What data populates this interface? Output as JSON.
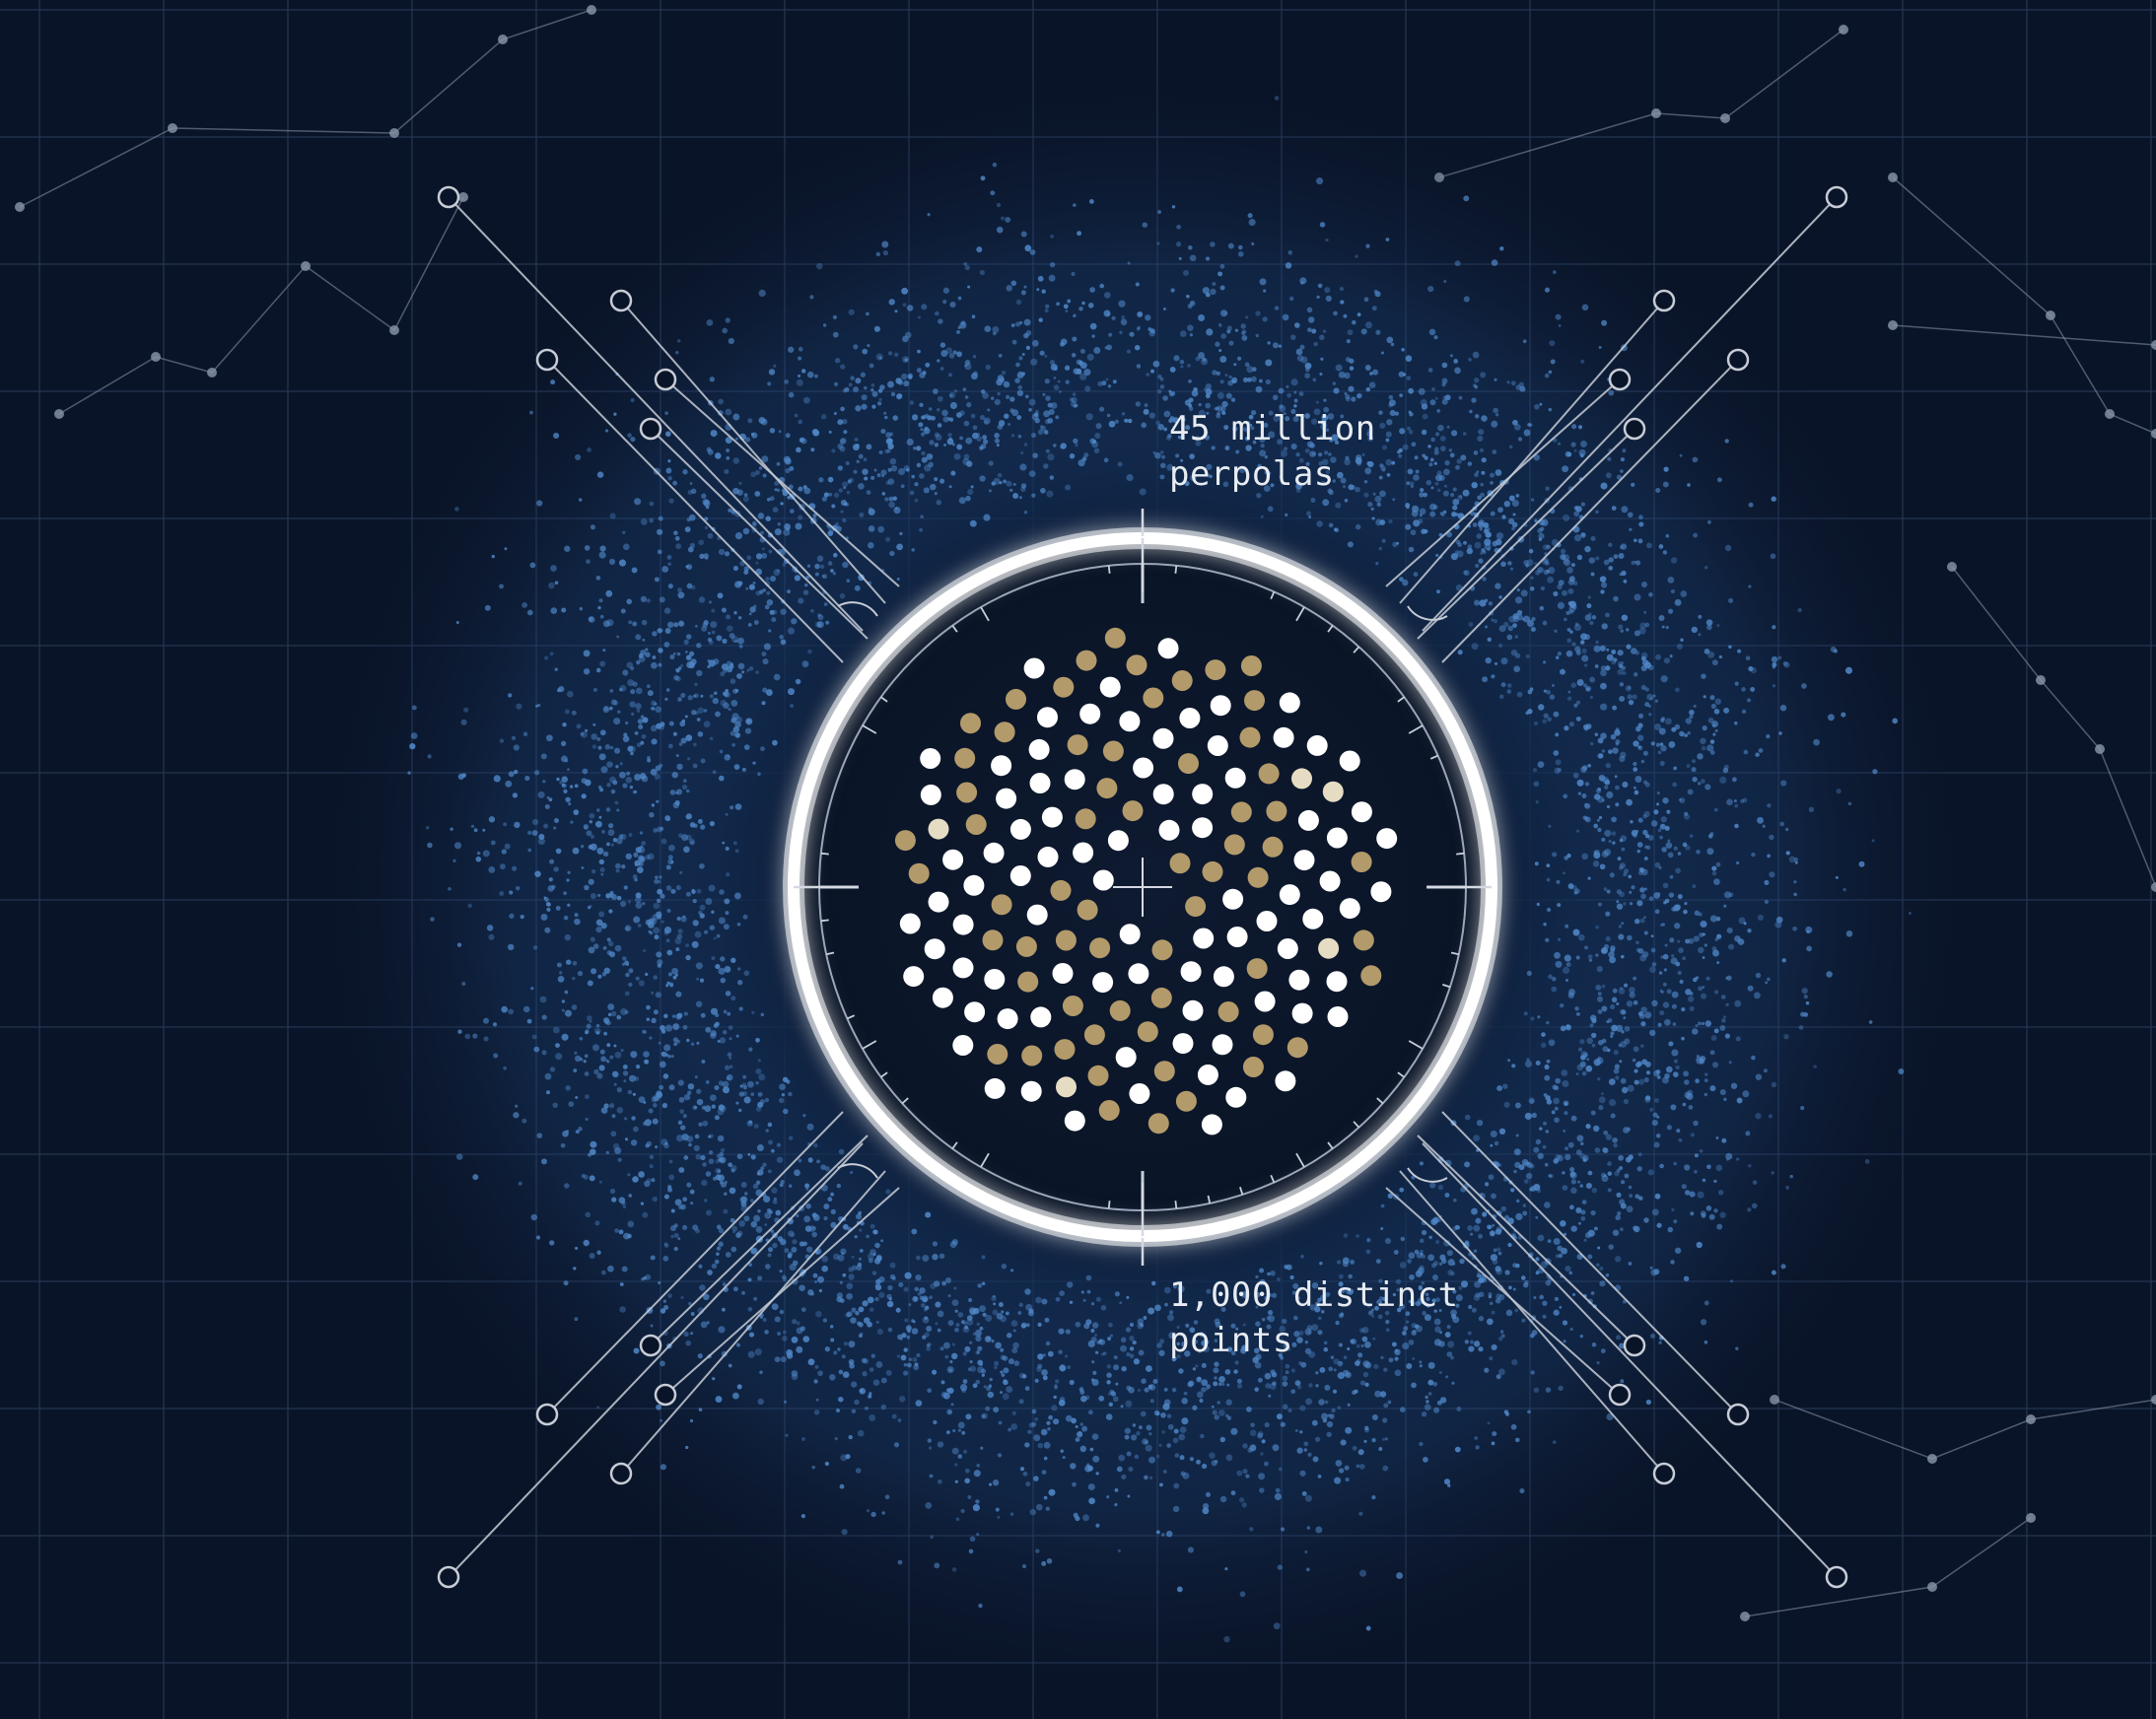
{
  "colors": {
    "background": "#0a1428",
    "grid": "#2a3a58",
    "particle": "#4f86c6",
    "ring": "#ffffff",
    "dot_white": "#ffffff",
    "dot_gold": "#b39a6a",
    "dot_cream": "#e6dcc4",
    "line": "#c7ccd6",
    "constellation": "#8a96aa"
  },
  "labels": {
    "top": [
      "45 million",
      "perpolas"
    ],
    "bottom": [
      "1,000 distinct",
      "points"
    ]
  },
  "icons": {
    "center": "crosshair-icon",
    "end_markers": "circle-node-icon"
  }
}
